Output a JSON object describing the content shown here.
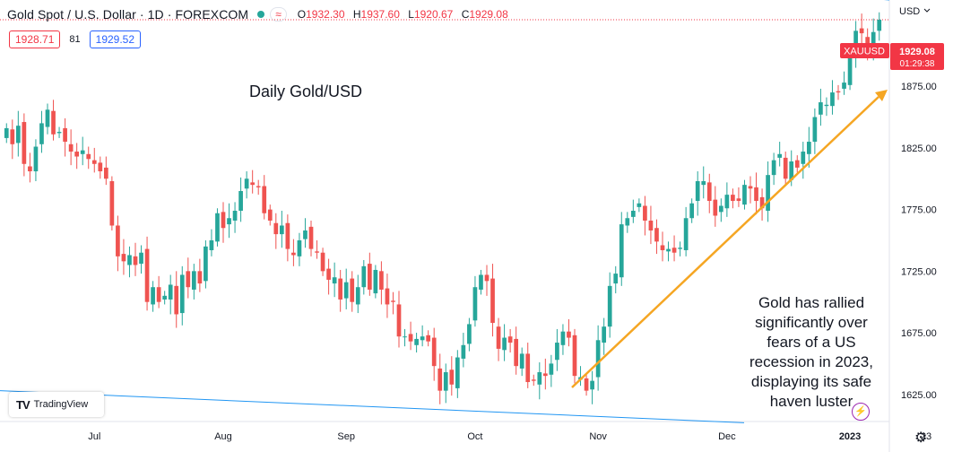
{
  "header": {
    "title": "Gold Spot / U.S. Dollar · 1D · FOREXCOM",
    "eye_icon": "≈",
    "ohlc": [
      {
        "k": "O",
        "v": "1932.30"
      },
      {
        "k": "H",
        "v": "1937.60"
      },
      {
        "k": "L",
        "v": "1920.67"
      },
      {
        "k": "C",
        "v": "1929.08"
      }
    ],
    "bid": "1928.71",
    "spread": "81",
    "ask": "1929.52"
  },
  "brand": {
    "logo_mark": "TV",
    "name": "TradingView"
  },
  "colors": {
    "up": "#26a69a",
    "down": "#ef5350",
    "arrow": "#f5a623",
    "channel": "#2196f3",
    "label_bg": "#f23645"
  },
  "chart_data": {
    "type": "candlestick",
    "title": "Daily Gold/USD",
    "annotation": "Gold has rallied significantly over fears of a US recession in 2023, displaying its safe haven luster",
    "symbol_label": "XAUUSD",
    "last_price": "1929.08",
    "countdown": "01:29:38",
    "y_axis_unit": "USD",
    "y_ticks": [
      "1875.00",
      "1825.00",
      "1775.00",
      "1725.00",
      "1675.00",
      "1625.00"
    ],
    "y_tick_values": [
      1875,
      1825,
      1775,
      1725,
      1675,
      1625
    ],
    "x_ticks": [
      "Jul",
      "Aug",
      "Sep",
      "Oct",
      "Nov",
      "Dec",
      "2023",
      "23"
    ],
    "x_tick_index": [
      15,
      37,
      58,
      80,
      101,
      123,
      144,
      157
    ],
    "ylim": [
      1603,
      1945
    ],
    "closes": [
      1841,
      1828,
      1843,
      1812,
      1806,
      1826,
      1845,
      1856,
      1836,
      1838,
      1830,
      1822,
      1818,
      1823,
      1816,
      1812,
      1806,
      1800,
      1762,
      1737,
      1733,
      1738,
      1730,
      1740,
      1700,
      1712,
      1700,
      1705,
      1714,
      1690,
      1722,
      1712,
      1725,
      1715,
      1745,
      1750,
      1772,
      1760,
      1768,
      1774,
      1790,
      1800,
      1795,
      1793,
      1772,
      1766,
      1755,
      1762,
      1743,
      1738,
      1750,
      1758,
      1743,
      1740,
      1725,
      1718,
      1720,
      1702,
      1716,
      1700,
      1712,
      1729,
      1710,
      1726,
      1710,
      1698,
      1700,
      1672,
      1672,
      1668,
      1670,
      1672,
      1668,
      1648,
      1628,
      1643,
      1633,
      1655,
      1665,
      1682,
      1712,
      1722,
      1717,
      1683,
      1662,
      1671,
      1667,
      1648,
      1658,
      1635,
      1636,
      1643,
      1640,
      1650,
      1667,
      1676,
      1671,
      1640,
      1639,
      1628,
      1636,
      1669,
      1680,
      1713,
      1723,
      1763,
      1768,
      1774,
      1780,
      1766,
      1758,
      1749,
      1742,
      1743,
      1740,
      1744,
      1768,
      1780,
      1798,
      1798,
      1782,
      1770,
      1778,
      1787,
      1782,
      1782,
      1795,
      1792,
      1782,
      1776,
      1803,
      1815,
      1820,
      1800,
      1814,
      1809,
      1822,
      1830,
      1850,
      1862,
      1860,
      1870,
      1870,
      1878,
      1902,
      1920,
      1918,
      1906,
      1919,
      1929
    ]
  }
}
